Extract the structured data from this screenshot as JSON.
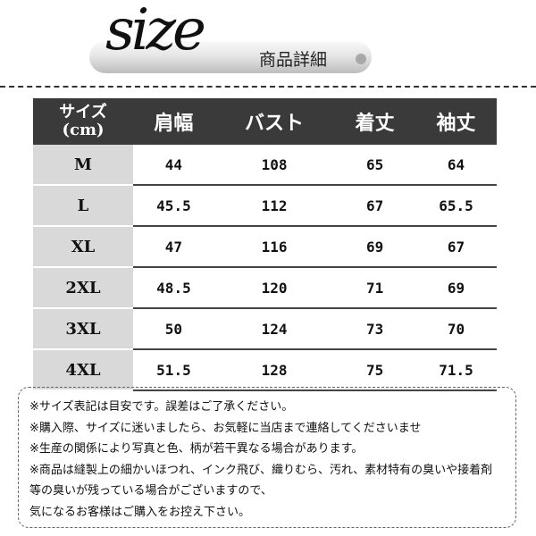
{
  "banner": {
    "script_title": "size",
    "subtitle": "商品詳細"
  },
  "table": {
    "headers": [
      "サイズ",
      "(cm)",
      "肩幅",
      "バスト",
      "着丈",
      "袖丈"
    ],
    "rows": [
      [
        "M",
        "44",
        "108",
        "65",
        "64"
      ],
      [
        "L",
        "45.5",
        "112",
        "67",
        "65.5"
      ],
      [
        "XL",
        "47",
        "116",
        "69",
        "67"
      ],
      [
        "2XL",
        "48.5",
        "120",
        "71",
        "69"
      ],
      [
        "3XL",
        "50",
        "124",
        "73",
        "70"
      ],
      [
        "4XL",
        "51.5",
        "128",
        "75",
        "71.5"
      ]
    ]
  },
  "notes": [
    "※サイズ表記は目安です。誤差はご了承ください。",
    "※購入際、サイズに迷いましたら、お気軽に当店まで連絡してくださいませ",
    "※生産の関係により写真と色、柄が若干異なる場合があります。",
    "※商品は縫製上の細かいほつれ、インク飛び、織りむら、汚れ、素材特有の臭いや接着剤",
    "等の臭いが残っている場合がございますので、",
    "気になるお客様はご購入をお控え下さい。"
  ]
}
